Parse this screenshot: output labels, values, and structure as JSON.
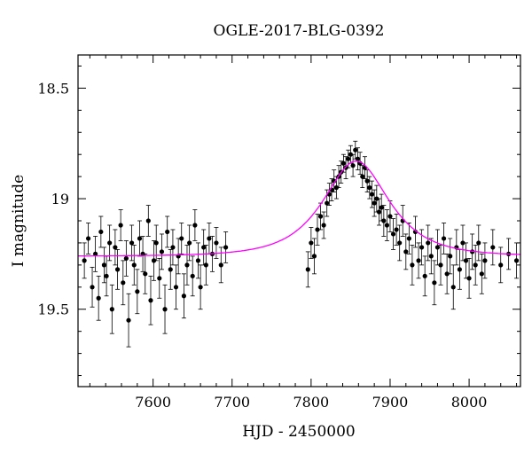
{
  "chart_data": {
    "type": "scatter",
    "title": "OGLE-2017-BLG-0392",
    "xlabel": "HJD - 2450000",
    "ylabel": "I magnitude",
    "xlim": [
      7505,
      8065
    ],
    "ylim": [
      19.85,
      18.35
    ],
    "y_inverted": true,
    "x_ticks": [
      7600,
      7700,
      7800,
      7900,
      8000
    ],
    "y_ticks": [
      18.5,
      19,
      19.5
    ],
    "x_tick_labels": [
      "7600",
      "7700",
      "7800",
      "7900",
      "8000"
    ],
    "y_tick_labels": [
      "18.5",
      "19",
      "19.5"
    ],
    "grid": false,
    "legend": "none",
    "colors": {
      "data": "#000000",
      "model": "#ff00ff"
    },
    "series": [
      {
        "kind": "points_with_errorbars",
        "x": [
          7513,
          7518,
          7523,
          7527,
          7531,
          7534,
          7538,
          7541,
          7545,
          7548,
          7552,
          7555,
          7559,
          7562,
          7566,
          7569,
          7573,
          7576,
          7580,
          7583,
          7587,
          7590,
          7594,
          7597,
          7601,
          7604,
          7608,
          7611,
          7615,
          7618,
          7622,
          7625,
          7629,
          7632,
          7636,
          7639,
          7643,
          7646,
          7650,
          7653,
          7657,
          7660,
          7664,
          7667,
          7671,
          7675,
          7680,
          7686,
          7692,
          7796,
          7800,
          7804,
          7808,
          7812,
          7816,
          7820,
          7823,
          7826,
          7829,
          7832,
          7835,
          7838,
          7841,
          7844,
          7847,
          7850,
          7853,
          7856,
          7859,
          7862,
          7865,
          7868,
          7871,
          7874,
          7877,
          7880,
          7883,
          7886,
          7889,
          7892,
          7896,
          7900,
          7904,
          7908,
          7912,
          7916,
          7920,
          7924,
          7928,
          7932,
          7936,
          7940,
          7944,
          7948,
          7952,
          7956,
          7960,
          7964,
          7968,
          7972,
          7976,
          7980,
          7984,
          7988,
          7992,
          7996,
          8000,
          8004,
          8008,
          8012,
          8016,
          8020,
          8030,
          8040,
          8050,
          8060
        ],
        "y": [
          19.28,
          19.18,
          19.4,
          19.25,
          19.45,
          19.15,
          19.3,
          19.35,
          19.2,
          19.5,
          19.22,
          19.32,
          19.12,
          19.38,
          19.27,
          19.55,
          19.2,
          19.3,
          19.42,
          19.18,
          19.25,
          19.34,
          19.1,
          19.46,
          19.28,
          19.2,
          19.36,
          19.24,
          19.5,
          19.15,
          19.32,
          19.22,
          19.4,
          19.26,
          19.18,
          19.44,
          19.3,
          19.2,
          19.35,
          19.12,
          19.28,
          19.4,
          19.22,
          19.3,
          19.18,
          19.25,
          19.2,
          19.3,
          19.22,
          19.32,
          19.2,
          19.26,
          19.14,
          19.08,
          19.12,
          19.02,
          18.98,
          18.96,
          18.92,
          18.95,
          18.9,
          18.88,
          18.84,
          18.86,
          18.82,
          18.8,
          18.85,
          18.78,
          18.82,
          18.84,
          18.9,
          18.86,
          18.92,
          18.95,
          18.98,
          19.02,
          19.0,
          19.06,
          19.04,
          19.1,
          19.12,
          19.08,
          19.16,
          19.14,
          19.2,
          19.1,
          19.24,
          19.18,
          19.3,
          19.15,
          19.28,
          19.22,
          19.35,
          19.2,
          19.26,
          19.38,
          19.22,
          19.3,
          19.18,
          19.34,
          19.26,
          19.4,
          19.22,
          19.32,
          19.2,
          19.28,
          19.36,
          19.24,
          19.3,
          19.2,
          19.34,
          19.28,
          19.22,
          19.3,
          19.25,
          19.28
        ],
        "err": [
          0.08,
          0.07,
          0.09,
          0.08,
          0.1,
          0.07,
          0.08,
          0.09,
          0.08,
          0.11,
          0.08,
          0.09,
          0.07,
          0.1,
          0.08,
          0.12,
          0.08,
          0.09,
          0.1,
          0.08,
          0.08,
          0.09,
          0.07,
          0.11,
          0.09,
          0.08,
          0.09,
          0.08,
          0.11,
          0.07,
          0.09,
          0.08,
          0.1,
          0.08,
          0.07,
          0.1,
          0.09,
          0.08,
          0.09,
          0.07,
          0.08,
          0.1,
          0.08,
          0.09,
          0.07,
          0.08,
          0.07,
          0.08,
          0.07,
          0.08,
          0.07,
          0.08,
          0.07,
          0.06,
          0.06,
          0.06,
          0.05,
          0.05,
          0.05,
          0.05,
          0.05,
          0.05,
          0.04,
          0.05,
          0.04,
          0.04,
          0.05,
          0.04,
          0.05,
          0.05,
          0.05,
          0.05,
          0.05,
          0.05,
          0.06,
          0.06,
          0.06,
          0.06,
          0.06,
          0.07,
          0.07,
          0.07,
          0.07,
          0.07,
          0.08,
          0.07,
          0.08,
          0.07,
          0.09,
          0.07,
          0.08,
          0.08,
          0.09,
          0.08,
          0.08,
          0.1,
          0.08,
          0.09,
          0.07,
          0.09,
          0.08,
          0.1,
          0.08,
          0.09,
          0.08,
          0.08,
          0.09,
          0.08,
          0.09,
          0.08,
          0.09,
          0.08,
          0.08,
          0.08,
          0.07,
          0.08
        ]
      },
      {
        "kind": "model_curve",
        "baseline": 19.26,
        "peak_mag": 18.83,
        "t0": 7857,
        "tE": 55
      }
    ]
  }
}
